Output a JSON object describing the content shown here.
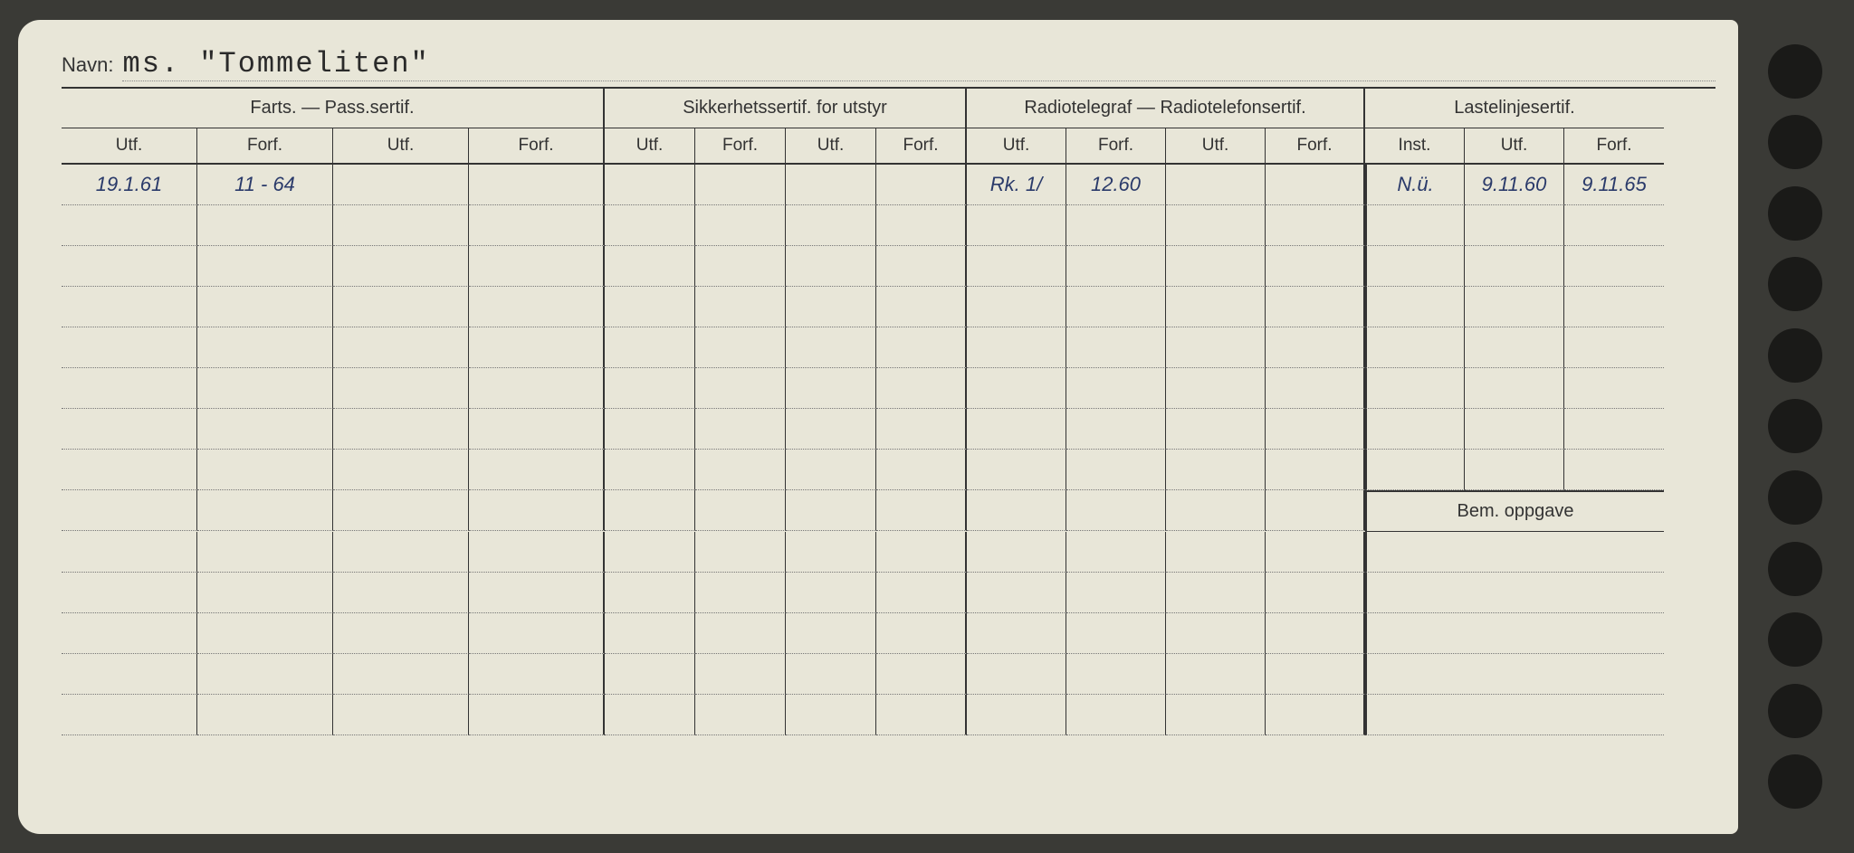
{
  "name_label": "Navn:",
  "name_value": "ms. \"Tommeliten\"",
  "sections": {
    "farts": "Farts. — Pass.sertif.",
    "sikkerhet": "Sikkerhetssertif. for utstyr",
    "radio": "Radiotelegraf — Radiotelefonsertif.",
    "laste": "Lastelinjesertif."
  },
  "col_labels": {
    "utf": "Utf.",
    "forf": "Forf.",
    "inst": "Inst."
  },
  "bem_label": "Bem. oppgave",
  "rows": [
    {
      "farts_utf1": "19.1.61",
      "farts_forf1": "11 - 64",
      "farts_utf2": "",
      "farts_forf2": "",
      "sikk_utf1": "",
      "sikk_forf1": "",
      "sikk_utf2": "",
      "sikk_forf2": "",
      "radio_utf1": "Rk. 1/",
      "radio_forf1": "12.60",
      "radio_utf2": "",
      "radio_forf2": "",
      "laste_inst": "N.ü.",
      "laste_utf": "9.11.60",
      "laste_forf": "9.11.65"
    }
  ],
  "colors": {
    "page_bg": "#3a3a36",
    "card_bg": "#e8e6d8",
    "line": "#333333",
    "dotted": "#777777",
    "handwriting": "#2a3a6a",
    "print": "#2a2a2a"
  },
  "body_rows": 14,
  "laste_rows_before_bem": 8,
  "bem_rows": 5
}
